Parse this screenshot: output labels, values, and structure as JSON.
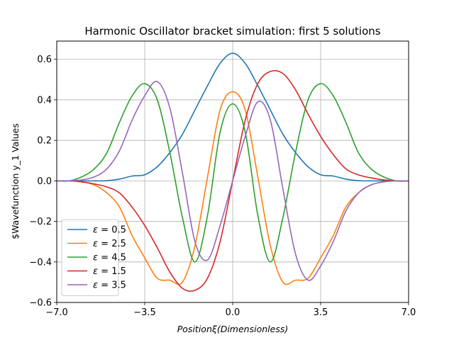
{
  "chart_data": {
    "type": "line",
    "title": "Harmonic Oscillator bracket simulation: first 5 solutions",
    "xlabel": "Positionξ(Dimensionless)",
    "ylabel": "$Wavefunction y_1 Values",
    "xlim": [
      -7.0,
      7.0
    ],
    "ylim": [
      -0.6,
      0.69
    ],
    "x_ticks": [
      -7.0,
      -3.5,
      0.0,
      3.5,
      7.0
    ],
    "x_tick_labels": [
      "−7.0",
      "−3.5",
      "0.0",
      "3.5",
      "7.0"
    ],
    "y_ticks": [
      -0.6,
      -0.4,
      -0.2,
      0.0,
      0.2,
      0.4,
      0.6
    ],
    "y_tick_labels": [
      "−0.6",
      "−0.4",
      "−0.2",
      "0.0",
      "0.2",
      "0.4",
      "0.6"
    ],
    "grid": true,
    "legend_position": "lower-left",
    "x": [
      -7.0,
      -6.5,
      -6.0,
      -5.5,
      -5.0,
      -4.5,
      -4.0,
      -3.5,
      -3.0,
      -2.5,
      -2.0,
      -1.5,
      -1.0,
      -0.5,
      0.0,
      0.5,
      1.0,
      1.5,
      2.0,
      2.5,
      3.0,
      3.5,
      4.0,
      4.5,
      5.0,
      5.5,
      6.0,
      6.5,
      7.0
    ],
    "series": [
      {
        "name": "ε = 0.5",
        "label_symbol": "ε",
        "label_rest": " = 0.5",
        "color": "#1f77b4",
        "values": [
          0.0,
          0.0,
          0.0,
          0.0,
          0.001,
          0.009,
          0.024,
          0.03,
          0.07,
          0.14,
          0.23,
          0.35,
          0.47,
          0.58,
          0.63,
          0.58,
          0.47,
          0.35,
          0.23,
          0.14,
          0.07,
          0.03,
          0.024,
          0.009,
          0.001,
          0.0,
          0.0,
          0.0,
          0.0
        ]
      },
      {
        "name": "ε = 2.5",
        "label_symbol": "ε",
        "label_rest": " = 2.5",
        "color": "#ff7f0e",
        "values": [
          0.0,
          0.0,
          -0.005,
          -0.02,
          -0.06,
          -0.13,
          -0.27,
          -0.38,
          -0.48,
          -0.49,
          -0.5,
          -0.32,
          0.02,
          0.35,
          0.44,
          0.35,
          0.02,
          -0.32,
          -0.5,
          -0.49,
          -0.48,
          -0.38,
          -0.27,
          -0.13,
          -0.06,
          -0.02,
          -0.005,
          0.0,
          0.0
        ]
      },
      {
        "name": "ε = 4.5",
        "label_symbol": "ε",
        "label_rest": " = 4.5",
        "color": "#2ca02c",
        "values": [
          0.0,
          0.0,
          0.02,
          0.06,
          0.14,
          0.29,
          0.42,
          0.48,
          0.4,
          0.14,
          -0.18,
          -0.4,
          -0.17,
          0.24,
          0.38,
          0.24,
          -0.17,
          -0.4,
          -0.18,
          0.14,
          0.4,
          0.48,
          0.42,
          0.29,
          0.14,
          0.06,
          0.02,
          0.0,
          0.0
        ]
      },
      {
        "name": "ε = 1.5",
        "label_symbol": "ε",
        "label_rest": " = 1.5",
        "color": "#d62728",
        "values": [
          0.0,
          0.0,
          -0.005,
          -0.015,
          -0.03,
          -0.06,
          -0.13,
          -0.22,
          -0.33,
          -0.45,
          -0.53,
          -0.54,
          -0.48,
          -0.3,
          0.0,
          0.3,
          0.48,
          0.54,
          0.53,
          0.45,
          0.33,
          0.22,
          0.13,
          0.06,
          0.03,
          0.015,
          0.005,
          0.0,
          0.0
        ]
      },
      {
        "name": "ε = 3.5",
        "label_symbol": "ε",
        "label_rest": " = 3.5",
        "color": "#9467bd",
        "values": [
          0.0,
          0.0,
          0.005,
          0.02,
          0.06,
          0.15,
          0.3,
          0.42,
          0.49,
          0.36,
          0.04,
          -0.3,
          -0.39,
          -0.22,
          0.0,
          0.22,
          0.39,
          0.3,
          -0.04,
          -0.36,
          -0.49,
          -0.42,
          -0.3,
          -0.15,
          -0.06,
          -0.02,
          -0.005,
          0.0,
          0.0
        ]
      }
    ]
  }
}
